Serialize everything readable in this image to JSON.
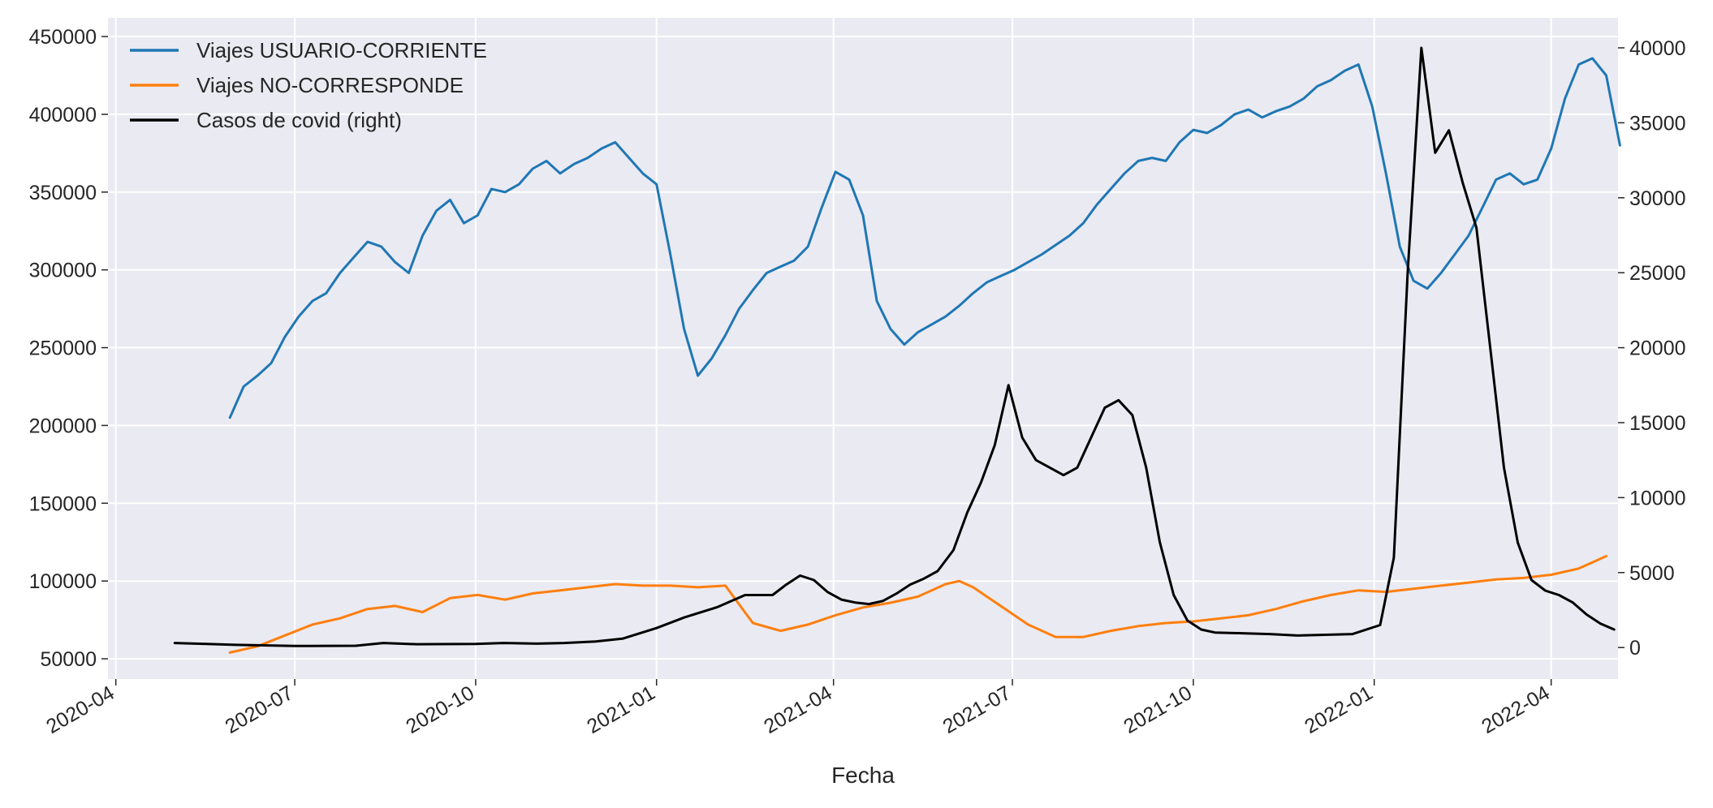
{
  "chart_data": {
    "type": "line",
    "title": "",
    "xlabel": "Fecha",
    "ylabel": "",
    "ylabel_right": "",
    "x_ticks": [
      "2020-04",
      "2020-07",
      "2020-10",
      "2021-01",
      "2021-04",
      "2021-07",
      "2021-10",
      "2022-01",
      "2022-04"
    ],
    "x_range": [
      "2020-03-28",
      "2022-05-05"
    ],
    "y_ticks_left": [
      "50000",
      "100000",
      "150000",
      "200000",
      "250000",
      "300000",
      "350000",
      "400000",
      "450000"
    ],
    "ylim_left": [
      37000,
      462000
    ],
    "y_ticks_right": [
      "0",
      "5000",
      "10000",
      "15000",
      "20000",
      "25000",
      "30000",
      "35000",
      "40000"
    ],
    "ylim_right": [
      -2100,
      42000
    ],
    "grid": true,
    "legend_position": "top-left",
    "series": [
      {
        "name": "Viajes USUARIO-CORRIENTE",
        "axis": "left",
        "color": "#1f77b4",
        "points": [
          [
            "2020-05-29",
            205000
          ],
          [
            "2020-06-05",
            225000
          ],
          [
            "2020-06-12",
            232000
          ],
          [
            "2020-06-19",
            240000
          ],
          [
            "2020-06-26",
            257000
          ],
          [
            "2020-07-03",
            270000
          ],
          [
            "2020-07-10",
            280000
          ],
          [
            "2020-07-17",
            285000
          ],
          [
            "2020-07-24",
            298000
          ],
          [
            "2020-07-31",
            308000
          ],
          [
            "2020-08-07",
            318000
          ],
          [
            "2020-08-14",
            315000
          ],
          [
            "2020-08-21",
            305000
          ],
          [
            "2020-08-28",
            298000
          ],
          [
            "2020-09-04",
            322000
          ],
          [
            "2020-09-11",
            338000
          ],
          [
            "2020-09-18",
            345000
          ],
          [
            "2020-09-25",
            330000
          ],
          [
            "2020-10-02",
            335000
          ],
          [
            "2020-10-09",
            352000
          ],
          [
            "2020-10-16",
            350000
          ],
          [
            "2020-10-23",
            355000
          ],
          [
            "2020-10-30",
            365000
          ],
          [
            "2020-11-06",
            370000
          ],
          [
            "2020-11-13",
            362000
          ],
          [
            "2020-11-20",
            368000
          ],
          [
            "2020-11-27",
            372000
          ],
          [
            "2020-12-04",
            378000
          ],
          [
            "2020-12-11",
            382000
          ],
          [
            "2020-12-18",
            372000
          ],
          [
            "2020-12-25",
            362000
          ],
          [
            "2021-01-01",
            355000
          ],
          [
            "2021-01-08",
            310000
          ],
          [
            "2021-01-15",
            262000
          ],
          [
            "2021-01-22",
            232000
          ],
          [
            "2021-01-29",
            243000
          ],
          [
            "2021-02-05",
            258000
          ],
          [
            "2021-02-12",
            275000
          ],
          [
            "2021-02-19",
            287000
          ],
          [
            "2021-02-26",
            298000
          ],
          [
            "2021-03-05",
            302000
          ],
          [
            "2021-03-12",
            306000
          ],
          [
            "2021-03-19",
            315000
          ],
          [
            "2021-03-26",
            340000
          ],
          [
            "2021-04-02",
            363000
          ],
          [
            "2021-04-09",
            358000
          ],
          [
            "2021-04-16",
            335000
          ],
          [
            "2021-04-23",
            280000
          ],
          [
            "2021-04-30",
            262000
          ],
          [
            "2021-05-07",
            252000
          ],
          [
            "2021-05-14",
            260000
          ],
          [
            "2021-05-21",
            265000
          ],
          [
            "2021-05-28",
            270000
          ],
          [
            "2021-06-04",
            277000
          ],
          [
            "2021-06-11",
            285000
          ],
          [
            "2021-06-18",
            292000
          ],
          [
            "2021-06-25",
            296000
          ],
          [
            "2021-07-02",
            300000
          ],
          [
            "2021-07-09",
            305000
          ],
          [
            "2021-07-16",
            310000
          ],
          [
            "2021-07-23",
            316000
          ],
          [
            "2021-07-30",
            322000
          ],
          [
            "2021-08-06",
            330000
          ],
          [
            "2021-08-13",
            342000
          ],
          [
            "2021-08-20",
            352000
          ],
          [
            "2021-08-27",
            362000
          ],
          [
            "2021-09-03",
            370000
          ],
          [
            "2021-09-10",
            372000
          ],
          [
            "2021-09-17",
            370000
          ],
          [
            "2021-09-24",
            382000
          ],
          [
            "2021-10-01",
            390000
          ],
          [
            "2021-10-08",
            388000
          ],
          [
            "2021-10-15",
            393000
          ],
          [
            "2021-10-22",
            400000
          ],
          [
            "2021-10-29",
            403000
          ],
          [
            "2021-11-05",
            398000
          ],
          [
            "2021-11-12",
            402000
          ],
          [
            "2021-11-19",
            405000
          ],
          [
            "2021-11-26",
            410000
          ],
          [
            "2021-12-03",
            418000
          ],
          [
            "2021-12-10",
            422000
          ],
          [
            "2021-12-17",
            428000
          ],
          [
            "2021-12-24",
            432000
          ],
          [
            "2021-12-31",
            405000
          ],
          [
            "2022-01-07",
            362000
          ],
          [
            "2022-01-14",
            315000
          ],
          [
            "2022-01-21",
            293000
          ],
          [
            "2022-01-28",
            288000
          ],
          [
            "2022-02-04",
            298000
          ],
          [
            "2022-02-11",
            310000
          ],
          [
            "2022-02-18",
            322000
          ],
          [
            "2022-02-25",
            340000
          ],
          [
            "2022-03-04",
            358000
          ],
          [
            "2022-03-11",
            362000
          ],
          [
            "2022-03-18",
            355000
          ],
          [
            "2022-03-25",
            358000
          ],
          [
            "2022-04-01",
            378000
          ],
          [
            "2022-04-08",
            410000
          ],
          [
            "2022-04-15",
            432000
          ],
          [
            "2022-04-22",
            436000
          ],
          [
            "2022-04-29",
            425000
          ],
          [
            "2022-05-06",
            380000
          ]
        ]
      },
      {
        "name": "Viajes NO-CORRESPONDE",
        "axis": "left",
        "color": "#ff7f0e",
        "points": [
          [
            "2020-05-29",
            54000
          ],
          [
            "2020-06-12",
            58000
          ],
          [
            "2020-06-26",
            65000
          ],
          [
            "2020-07-10",
            72000
          ],
          [
            "2020-07-24",
            76000
          ],
          [
            "2020-08-07",
            82000
          ],
          [
            "2020-08-21",
            84000
          ],
          [
            "2020-09-04",
            80000
          ],
          [
            "2020-09-18",
            89000
          ],
          [
            "2020-10-02",
            91000
          ],
          [
            "2020-10-16",
            88000
          ],
          [
            "2020-10-30",
            92000
          ],
          [
            "2020-11-13",
            94000
          ],
          [
            "2020-11-27",
            96000
          ],
          [
            "2020-12-11",
            98000
          ],
          [
            "2020-12-25",
            97000
          ],
          [
            "2021-01-08",
            97000
          ],
          [
            "2021-01-22",
            96000
          ],
          [
            "2021-02-05",
            97000
          ],
          [
            "2021-02-12",
            85000
          ],
          [
            "2021-02-19",
            73000
          ],
          [
            "2021-03-05",
            68000
          ],
          [
            "2021-03-19",
            72000
          ],
          [
            "2021-04-02",
            78000
          ],
          [
            "2021-04-16",
            83000
          ],
          [
            "2021-04-30",
            86000
          ],
          [
            "2021-05-14",
            90000
          ],
          [
            "2021-05-28",
            98000
          ],
          [
            "2021-06-04",
            100000
          ],
          [
            "2021-06-11",
            96000
          ],
          [
            "2021-06-25",
            84000
          ],
          [
            "2021-07-09",
            72000
          ],
          [
            "2021-07-23",
            64000
          ],
          [
            "2021-08-06",
            64000
          ],
          [
            "2021-08-20",
            68000
          ],
          [
            "2021-09-03",
            71000
          ],
          [
            "2021-09-17",
            73000
          ],
          [
            "2021-10-01",
            74000
          ],
          [
            "2021-10-15",
            76000
          ],
          [
            "2021-10-29",
            78000
          ],
          [
            "2021-11-12",
            82000
          ],
          [
            "2021-11-26",
            87000
          ],
          [
            "2021-12-10",
            91000
          ],
          [
            "2021-12-24",
            94000
          ],
          [
            "2022-01-07",
            93000
          ],
          [
            "2022-01-21",
            95000
          ],
          [
            "2022-02-04",
            97000
          ],
          [
            "2022-02-18",
            99000
          ],
          [
            "2022-03-04",
            101000
          ],
          [
            "2022-03-18",
            102000
          ],
          [
            "2022-04-01",
            104000
          ],
          [
            "2022-04-15",
            108000
          ],
          [
            "2022-04-22",
            112000
          ],
          [
            "2022-04-29",
            116000
          ]
        ]
      },
      {
        "name": "Casos de covid (right)",
        "axis": "right",
        "color": "#000000",
        "points": [
          [
            "2020-05-01",
            300
          ],
          [
            "2020-05-15",
            250
          ],
          [
            "2020-06-01",
            180
          ],
          [
            "2020-07-01",
            100
          ],
          [
            "2020-08-01",
            120
          ],
          [
            "2020-08-15",
            300
          ],
          [
            "2020-09-01",
            220
          ],
          [
            "2020-10-01",
            240
          ],
          [
            "2020-10-15",
            300
          ],
          [
            "2020-11-01",
            260
          ],
          [
            "2020-11-15",
            300
          ],
          [
            "2020-12-01",
            400
          ],
          [
            "2020-12-15",
            600
          ],
          [
            "2021-01-01",
            1300
          ],
          [
            "2021-01-15",
            2000
          ],
          [
            "2021-02-01",
            2700
          ],
          [
            "2021-02-15",
            3500
          ],
          [
            "2021-03-01",
            3500
          ],
          [
            "2021-03-08",
            4200
          ],
          [
            "2021-03-15",
            4800
          ],
          [
            "2021-03-22",
            4500
          ],
          [
            "2021-03-29",
            3700
          ],
          [
            "2021-04-05",
            3200
          ],
          [
            "2021-04-12",
            3000
          ],
          [
            "2021-04-19",
            2900
          ],
          [
            "2021-04-26",
            3100
          ],
          [
            "2021-05-03",
            3600
          ],
          [
            "2021-05-10",
            4200
          ],
          [
            "2021-05-17",
            4600
          ],
          [
            "2021-05-24",
            5100
          ],
          [
            "2021-06-01",
            6500
          ],
          [
            "2021-06-08",
            9000
          ],
          [
            "2021-06-15",
            11000
          ],
          [
            "2021-06-22",
            13500
          ],
          [
            "2021-06-29",
            17500
          ],
          [
            "2021-07-06",
            14000
          ],
          [
            "2021-07-13",
            12500
          ],
          [
            "2021-07-20",
            12000
          ],
          [
            "2021-07-27",
            11500
          ],
          [
            "2021-08-03",
            12000
          ],
          [
            "2021-08-10",
            14000
          ],
          [
            "2021-08-17",
            16000
          ],
          [
            "2021-08-24",
            16500
          ],
          [
            "2021-08-31",
            15500
          ],
          [
            "2021-09-07",
            12000
          ],
          [
            "2021-09-14",
            7000
          ],
          [
            "2021-09-21",
            3500
          ],
          [
            "2021-09-28",
            1800
          ],
          [
            "2021-10-05",
            1200
          ],
          [
            "2021-10-12",
            1000
          ],
          [
            "2021-10-26",
            950
          ],
          [
            "2021-11-09",
            900
          ],
          [
            "2021-11-23",
            800
          ],
          [
            "2021-12-07",
            850
          ],
          [
            "2021-12-21",
            900
          ],
          [
            "2022-01-04",
            1500
          ],
          [
            "2022-01-11",
            6000
          ],
          [
            "2022-01-18",
            25000
          ],
          [
            "2022-01-25",
            40000
          ],
          [
            "2022-02-01",
            33000
          ],
          [
            "2022-02-08",
            34500
          ],
          [
            "2022-02-15",
            31000
          ],
          [
            "2022-02-22",
            28000
          ],
          [
            "2022-03-01",
            20000
          ],
          [
            "2022-03-08",
            12000
          ],
          [
            "2022-03-15",
            7000
          ],
          [
            "2022-03-22",
            4500
          ],
          [
            "2022-03-29",
            3800
          ],
          [
            "2022-04-05",
            3500
          ],
          [
            "2022-04-12",
            3000
          ],
          [
            "2022-04-19",
            2200
          ],
          [
            "2022-04-26",
            1600
          ],
          [
            "2022-05-03",
            1200
          ]
        ]
      }
    ]
  }
}
